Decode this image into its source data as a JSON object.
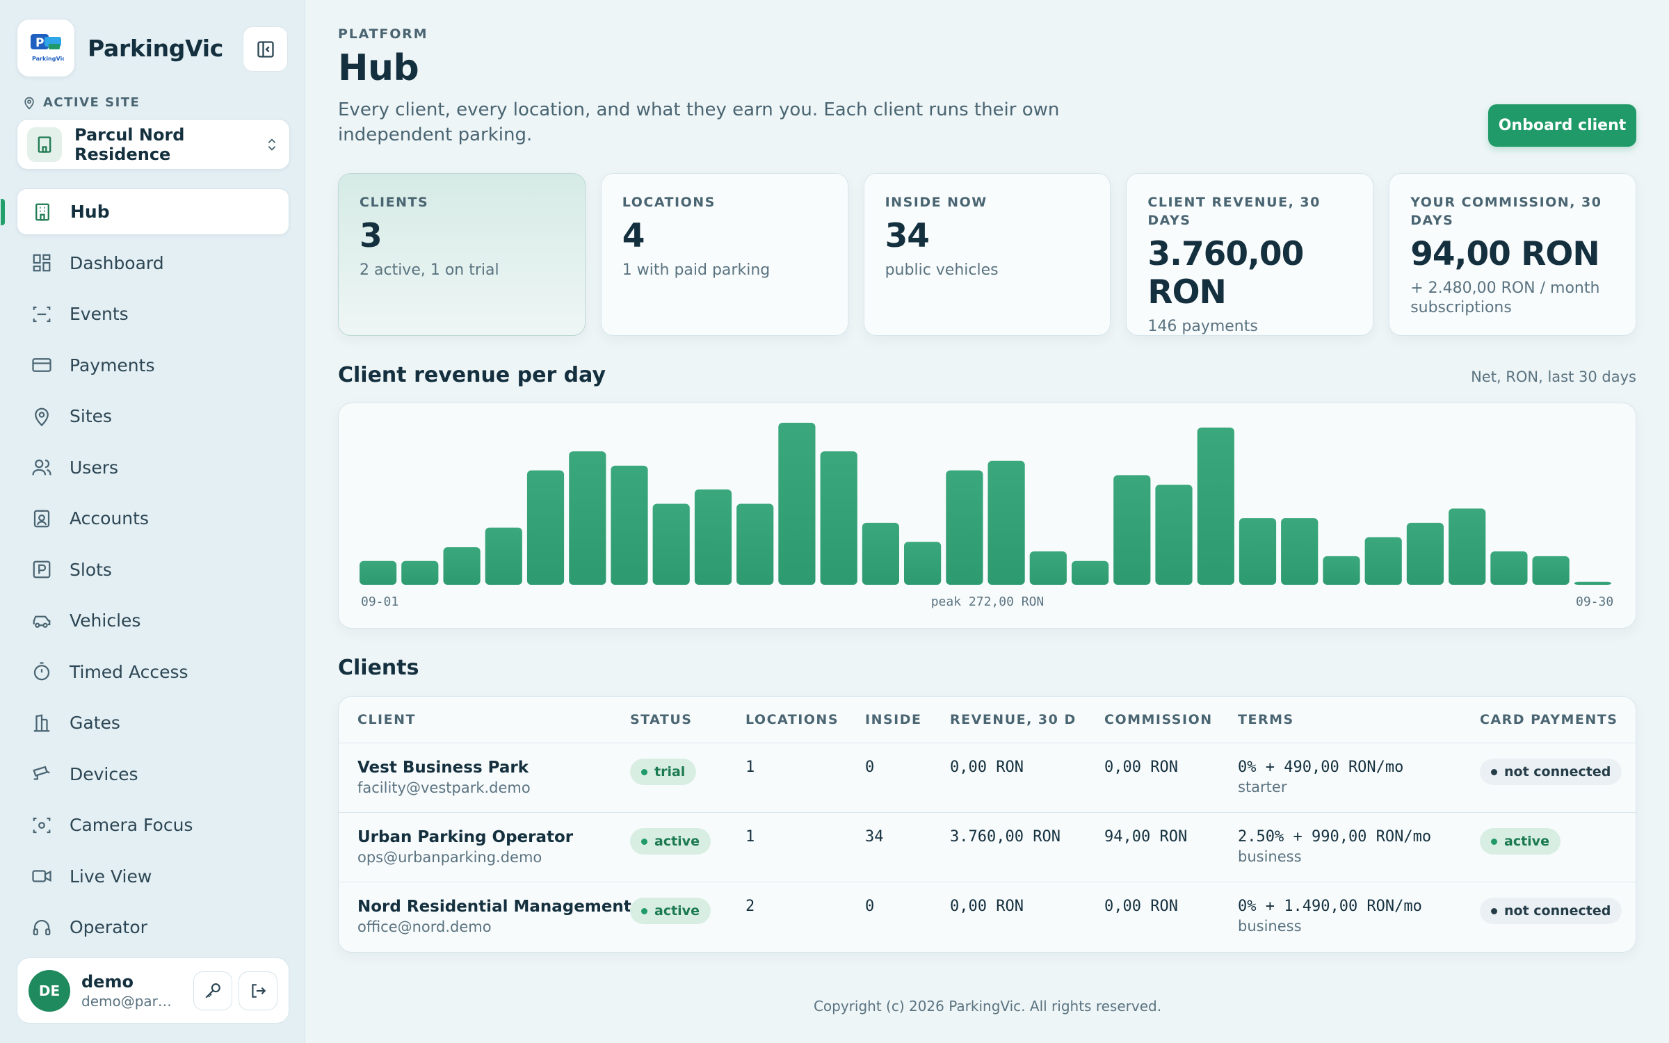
{
  "brand": {
    "name": "ParkingVic",
    "logo_text": "ParkingVic"
  },
  "sidebar": {
    "active_site_label": "ACTIVE SITE",
    "site_name": "Parcul Nord Residence",
    "items": [
      {
        "label": "Hub",
        "icon": "building-icon",
        "active": true
      },
      {
        "label": "Dashboard",
        "icon": "dashboard-icon"
      },
      {
        "label": "Events",
        "icon": "scan-icon"
      },
      {
        "label": "Payments",
        "icon": "credit-card-icon"
      },
      {
        "label": "Sites",
        "icon": "map-pin-icon"
      },
      {
        "label": "Users",
        "icon": "users-icon"
      },
      {
        "label": "Accounts",
        "icon": "id-badge-icon"
      },
      {
        "label": "Slots",
        "icon": "parking-icon"
      },
      {
        "label": "Vehicles",
        "icon": "car-icon"
      },
      {
        "label": "Timed Access",
        "icon": "timer-icon"
      },
      {
        "label": "Gates",
        "icon": "gate-icon"
      },
      {
        "label": "Devices",
        "icon": "device-icon"
      },
      {
        "label": "Camera Focus",
        "icon": "camera-focus-icon"
      },
      {
        "label": "Live View",
        "icon": "video-icon"
      },
      {
        "label": "Operator",
        "icon": "headset-icon"
      }
    ],
    "user": {
      "initials": "DE",
      "name": "demo",
      "email": "demo@parkingvic.demo"
    }
  },
  "header": {
    "eyebrow": "PLATFORM",
    "title": "Hub",
    "subtitle": "Every client, every location, and what they earn you. Each client runs their own independent parking.",
    "onboard_label": "Onboard client"
  },
  "stats": [
    {
      "label": "CLIENTS",
      "value": "3",
      "sub": "2 active, 1 on trial"
    },
    {
      "label": "LOCATIONS",
      "value": "4",
      "sub": "1 with paid parking"
    },
    {
      "label": "INSIDE NOW",
      "value": "34",
      "sub": "public vehicles"
    },
    {
      "label": "CLIENT REVENUE, 30 DAYS",
      "value": "3.760,00 RON",
      "sub": "146 payments"
    },
    {
      "label": "YOUR COMMISSION, 30 DAYS",
      "value": "94,00 RON",
      "sub": "+ 2.480,00 RON / month subscriptions"
    }
  ],
  "chart_section": {
    "title": "Client revenue per day",
    "note": "Net, RON, last 30 days"
  },
  "chart_data": {
    "type": "bar",
    "title": "Client revenue per day",
    "xlabel": "",
    "ylabel": "",
    "x_start_label": "09-01",
    "x_end_label": "09-30",
    "peak_label": "peak 272,00 RON",
    "ylim": [
      0,
      272
    ],
    "color": "#3aa87c",
    "values": [
      40,
      40,
      63,
      96,
      192,
      224,
      200,
      136,
      160,
      136,
      272,
      224,
      104,
      72,
      192,
      208,
      56,
      40,
      184,
      168,
      264,
      112,
      112,
      48,
      80,
      104,
      128,
      56,
      48,
      5
    ]
  },
  "clients_section": {
    "title": "Clients"
  },
  "table": {
    "headers": [
      "CLIENT",
      "STATUS",
      "LOCATIONS",
      "INSIDE",
      "REVENUE, 30 D",
      "COMMISSION",
      "TERMS",
      "CARD PAYMENTS"
    ],
    "rows": [
      {
        "name": "Vest Business Park",
        "email": "facility@vestpark.demo",
        "status": "trial",
        "locations": "1",
        "inside": "0",
        "revenue": "0,00 RON",
        "commission": "0,00 RON",
        "terms": "0% + 490,00 RON/mo",
        "plan": "starter",
        "card": "not connected"
      },
      {
        "name": "Urban Parking Operator",
        "email": "ops@urbanparking.demo",
        "status": "active",
        "locations": "1",
        "inside": "34",
        "revenue": "3.760,00 RON",
        "commission": "94,00 RON",
        "terms": "2.50% + 990,00 RON/mo",
        "plan": "business",
        "card": "active"
      },
      {
        "name": "Nord Residential Management",
        "email": "office@nord.demo",
        "status": "active",
        "locations": "2",
        "inside": "0",
        "revenue": "0,00 RON",
        "commission": "0,00 RON",
        "terms": "0% + 1.490,00 RON/mo",
        "plan": "business",
        "card": "not connected"
      }
    ]
  },
  "footer": {
    "text": "Copyright (c) 2026 ParkingVic. All rights reserved."
  }
}
